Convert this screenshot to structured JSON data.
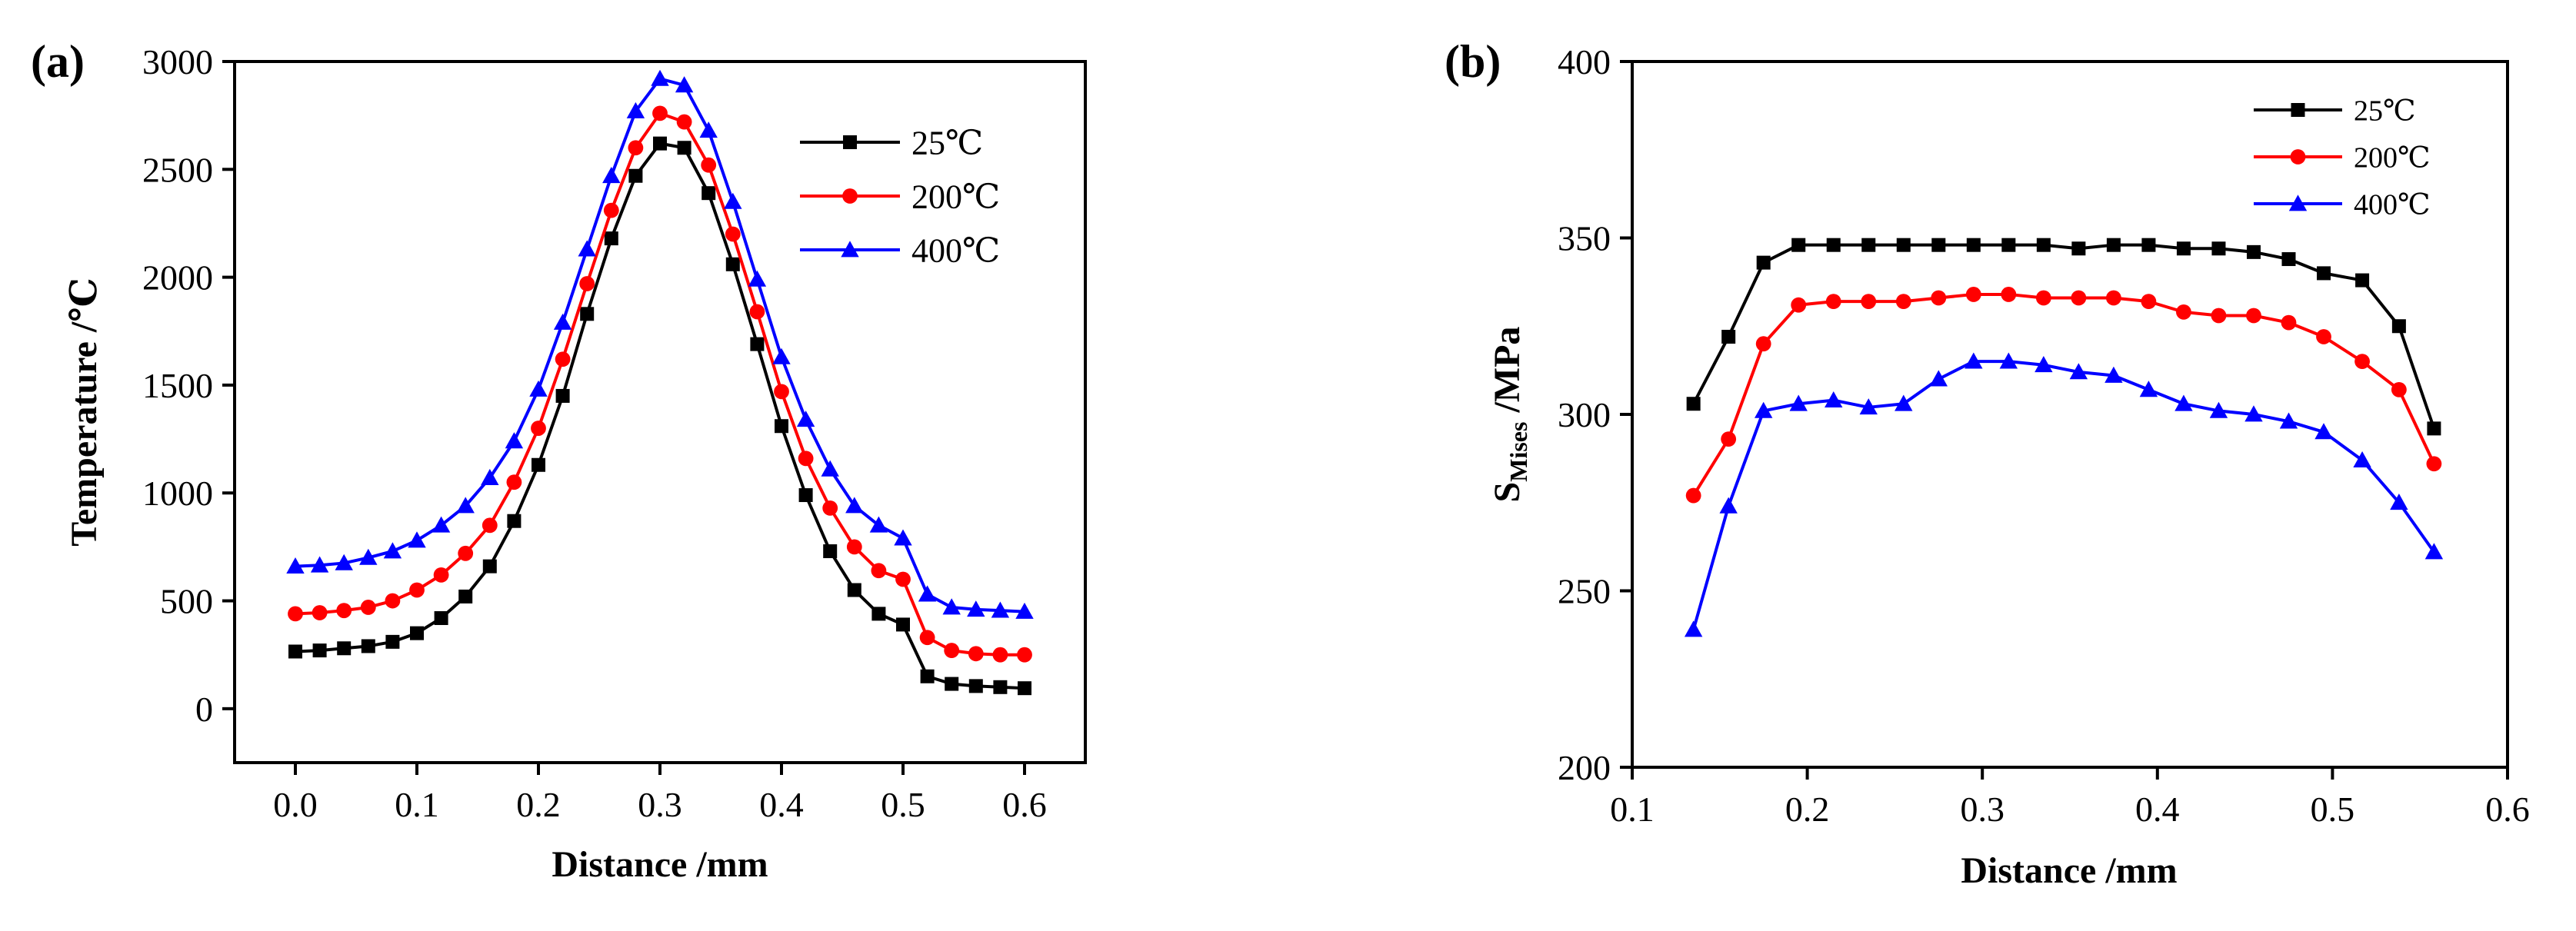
{
  "chart_data": [
    {
      "type": "line",
      "panel_label": "(a)",
      "xlabel": "Distance /mm",
      "ylabel": "Temperature /℃",
      "xlim": [
        -0.05,
        0.65
      ],
      "ylim": [
        -250,
        3000
      ],
      "xticks": [
        0.0,
        0.1,
        0.2,
        0.3,
        0.4,
        0.5,
        0.6
      ],
      "xtick_labels": [
        "0.0",
        "0.1",
        "0.2",
        "0.3",
        "0.4",
        "0.5",
        "0.6"
      ],
      "yticks": [
        0,
        500,
        1000,
        1500,
        2000,
        2500,
        3000
      ],
      "ytick_labels": [
        "0",
        "500",
        "1000",
        "1500",
        "2000",
        "2500",
        "3000"
      ],
      "legend_position": "top-right",
      "x": [
        0.0,
        0.02,
        0.04,
        0.06,
        0.08,
        0.1,
        0.12,
        0.14,
        0.16,
        0.18,
        0.2,
        0.22,
        0.24,
        0.26,
        0.28,
        0.3,
        0.32,
        0.34,
        0.36,
        0.38,
        0.4,
        0.42,
        0.44,
        0.46,
        0.48,
        0.5,
        0.52,
        0.54,
        0.56,
        0.58,
        0.6
      ],
      "series": [
        {
          "name": "25℃",
          "color": "#000000",
          "marker": "square",
          "values": [
            265,
            270,
            280,
            290,
            310,
            350,
            420,
            520,
            660,
            870,
            1130,
            1450,
            1830,
            2180,
            2470,
            2620,
            2600,
            2390,
            2060,
            1690,
            1310,
            990,
            730,
            550,
            440,
            390,
            150,
            115,
            105,
            100,
            95
          ]
        },
        {
          "name": "200℃",
          "color": "#ff0000",
          "marker": "circle",
          "values": [
            440,
            445,
            455,
            470,
            500,
            550,
            620,
            720,
            850,
            1050,
            1300,
            1620,
            1970,
            2310,
            2600,
            2760,
            2720,
            2520,
            2200,
            1840,
            1470,
            1160,
            930,
            750,
            640,
            600,
            330,
            270,
            255,
            250,
            250
          ]
        },
        {
          "name": "400℃",
          "color": "#0000ff",
          "marker": "triangle",
          "values": [
            660,
            665,
            675,
            700,
            730,
            780,
            850,
            940,
            1070,
            1240,
            1480,
            1790,
            2130,
            2470,
            2770,
            2920,
            2890,
            2680,
            2350,
            1990,
            1630,
            1340,
            1110,
            940,
            850,
            790,
            530,
            470,
            460,
            455,
            450
          ]
        }
      ]
    },
    {
      "type": "line",
      "panel_label": "(b)",
      "xlabel": "Distance /mm",
      "ylabel_main": "S",
      "ylabel_sub": "Mises",
      "ylabel_unit": " /MPa",
      "xlim": [
        0.1,
        0.6
      ],
      "ylim": [
        200,
        400
      ],
      "xticks": [
        0.1,
        0.2,
        0.3,
        0.4,
        0.5,
        0.6
      ],
      "xtick_labels": [
        "0.1",
        "0.2",
        "0.3",
        "0.4",
        "0.5",
        "0.6"
      ],
      "yticks": [
        200,
        250,
        300,
        350,
        400
      ],
      "ytick_labels": [
        "200",
        "250",
        "300",
        "350",
        "400"
      ],
      "legend_position": "top-right",
      "x": [
        0.135,
        0.155,
        0.175,
        0.195,
        0.215,
        0.235,
        0.255,
        0.275,
        0.295,
        0.315,
        0.335,
        0.355,
        0.375,
        0.395,
        0.415,
        0.435,
        0.455,
        0.475,
        0.495,
        0.517,
        0.538,
        0.558
      ],
      "series": [
        {
          "name": "25℃",
          "color": "#000000",
          "marker": "square",
          "values": [
            303,
            322,
            343,
            348,
            348,
            348,
            348,
            348,
            348,
            348,
            348,
            347,
            348,
            348,
            347,
            347,
            346,
            344,
            340,
            338,
            325,
            296
          ]
        },
        {
          "name": "200℃",
          "color": "#ff0000",
          "marker": "circle",
          "values": [
            277,
            293,
            320,
            331,
            332,
            332,
            332,
            333,
            334,
            334,
            333,
            333,
            333,
            332,
            329,
            328,
            328,
            326,
            322,
            315,
            307,
            286
          ]
        },
        {
          "name": "400℃",
          "color": "#0000ff",
          "marker": "triangle",
          "values": [
            239,
            274,
            301,
            303,
            304,
            302,
            303,
            310,
            315,
            315,
            314,
            312,
            311,
            307,
            303,
            301,
            300,
            298,
            295,
            287,
            275,
            261
          ]
        }
      ]
    }
  ]
}
